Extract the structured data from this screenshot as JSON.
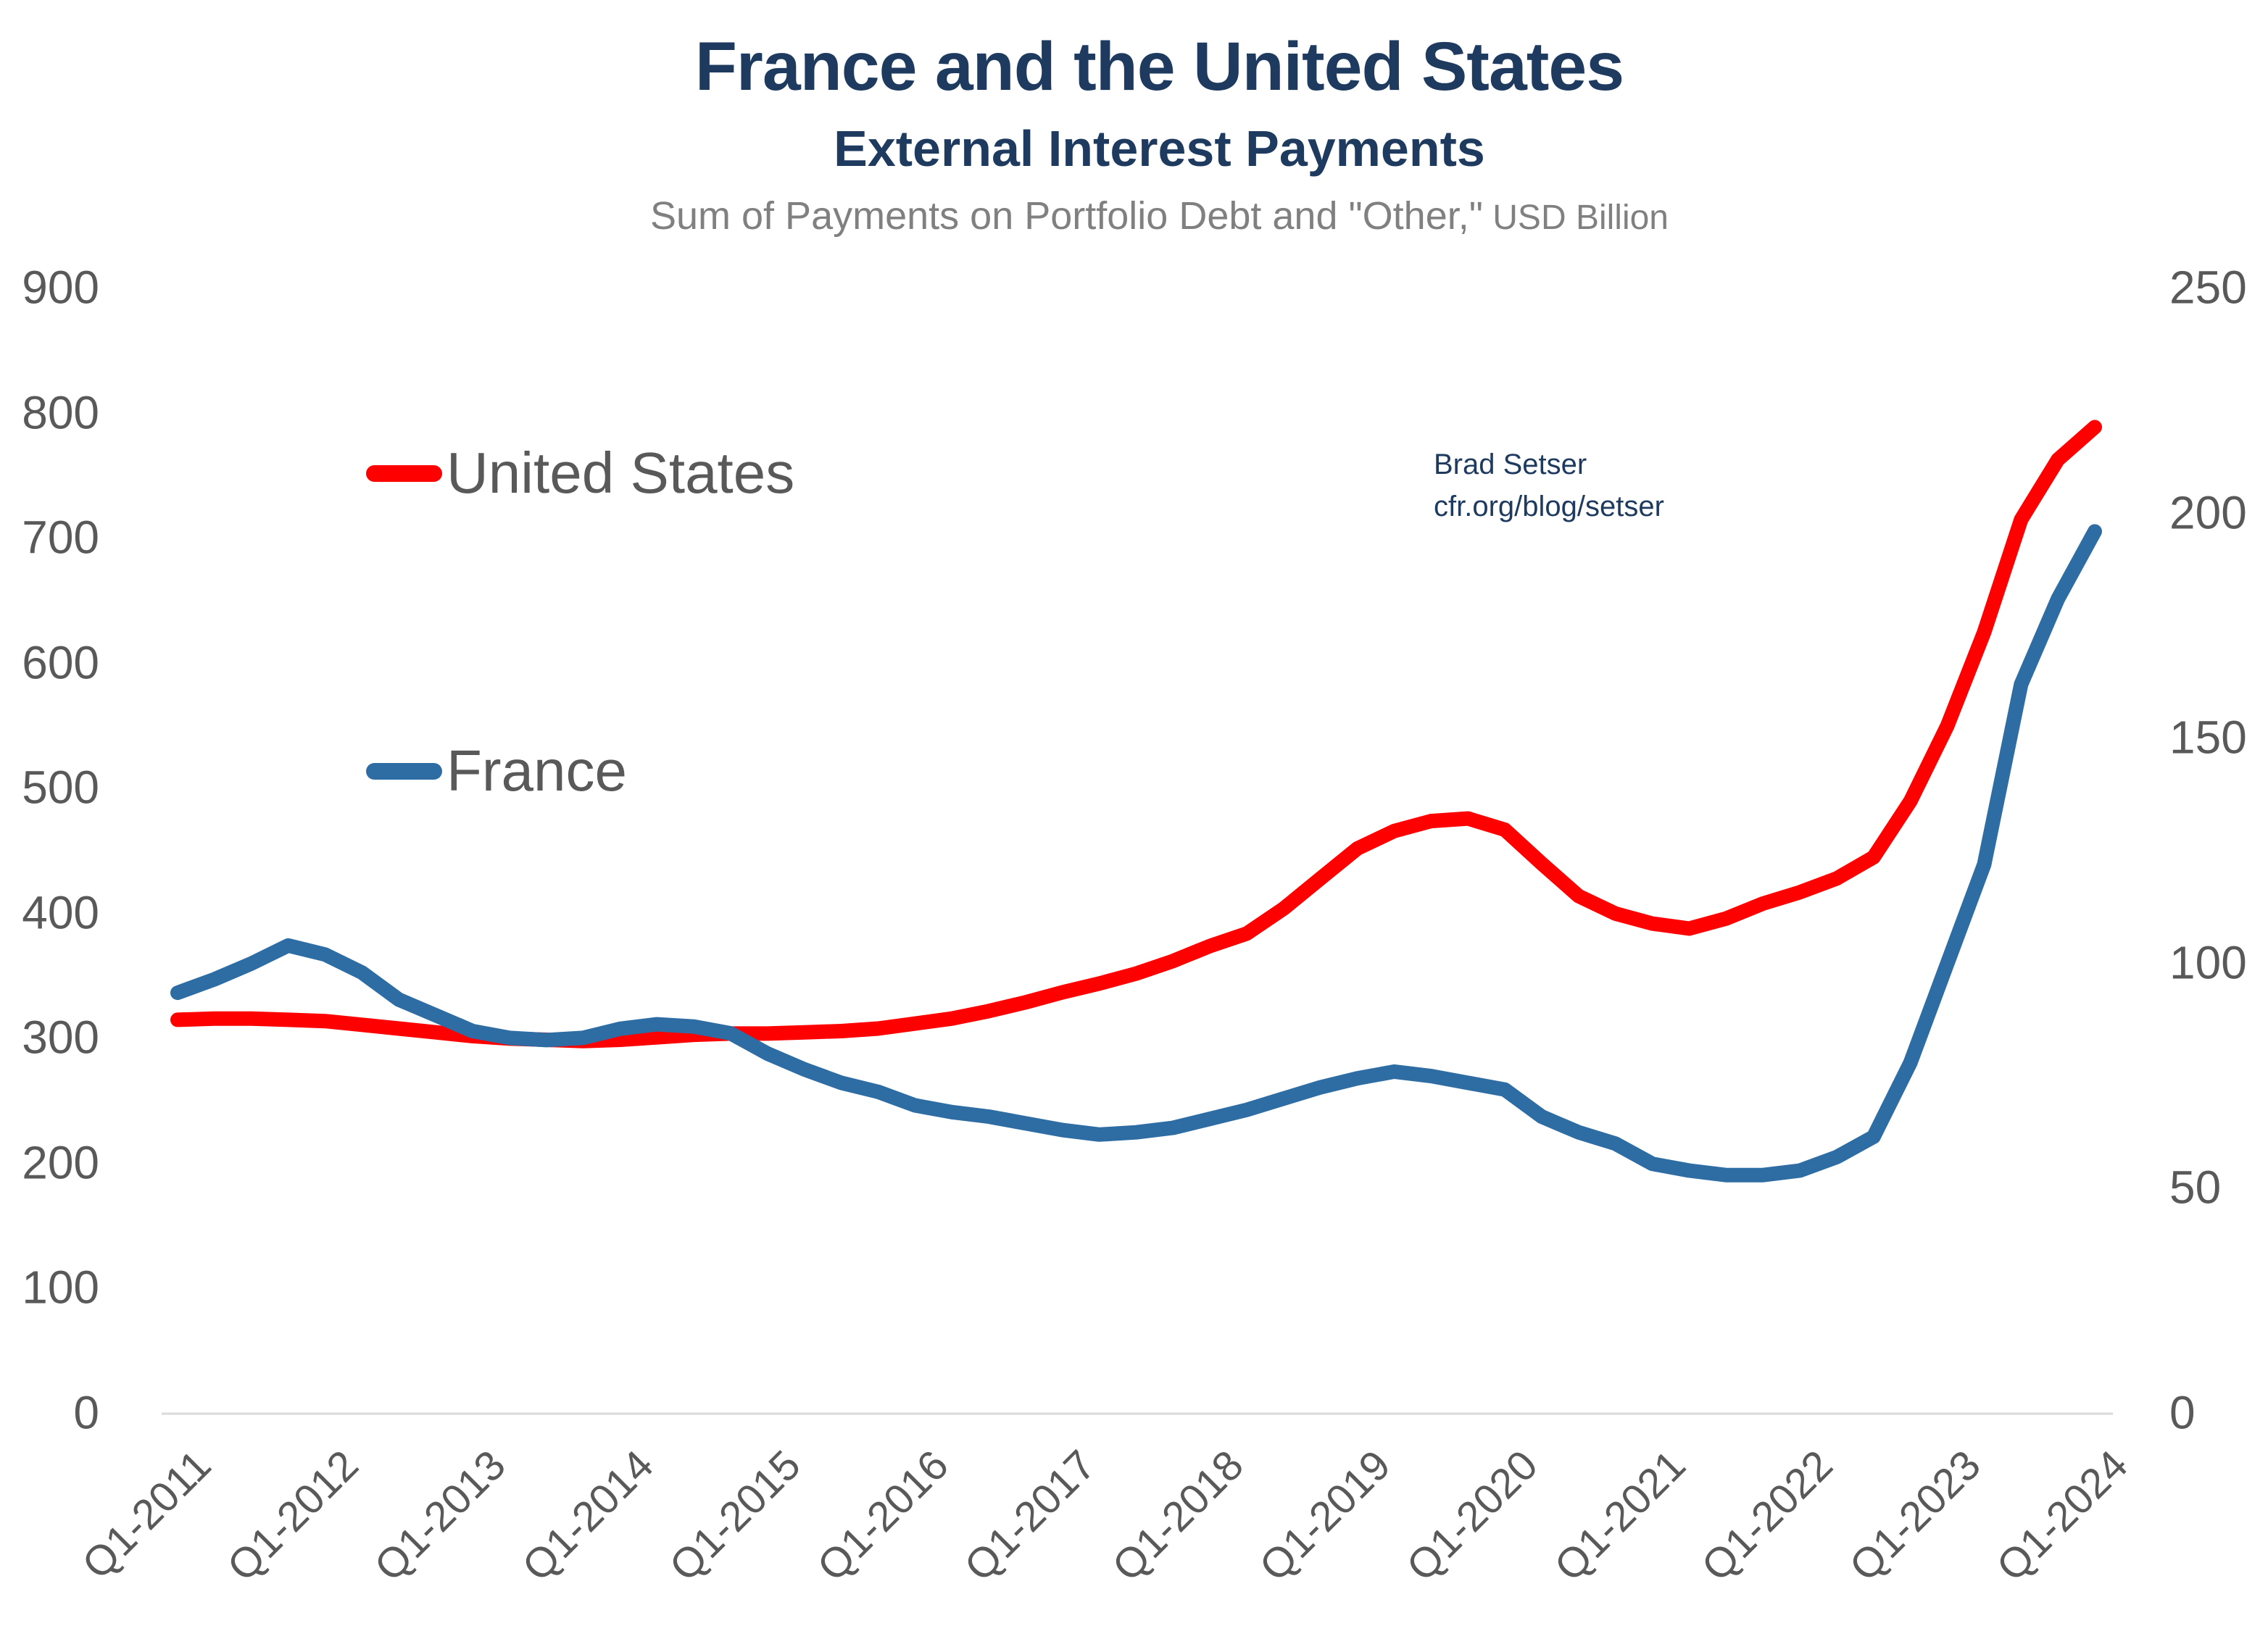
{
  "title": "France and the United States",
  "subtitle": "External Interest Payments",
  "subsubtitle": "Sum of Payments on Portfolio Debt and \"Other,\"",
  "subsubtitle_suffix": " USD Billion",
  "annotation": {
    "line1": "Brad Setser",
    "line2": "cfr.org/blog/setser"
  },
  "colors": {
    "title_navy": "#1E3A5F",
    "text_gray": "#595959",
    "muted_gray": "#808080",
    "axis_line": "#D9D9D9",
    "us_red": "#FE0000",
    "france_blue": "#2E6DA4"
  },
  "legend": [
    {
      "label": "United States",
      "color": "#FE0000"
    },
    {
      "label": "France",
      "color": "#2E6DA4"
    }
  ],
  "chart_data": {
    "type": "line",
    "title": "France and the United States",
    "subtitle": "External Interest Payments",
    "units": "USD Billion",
    "grid": false,
    "x_start": "Q1-2011",
    "x_end": "Q1-2024",
    "frequency": "quarterly",
    "x_tick_labels": [
      "Q1-2011",
      "Q1-2012",
      "Q1-2013",
      "Q1-2014",
      "Q1-2015",
      "Q1-2016",
      "Q1-2017",
      "Q1-2018",
      "Q1-2019",
      "Q1-2020",
      "Q1-2021",
      "Q1-2022",
      "Q1-2023",
      "Q1-2024"
    ],
    "left_axis": {
      "min": 0,
      "max": 900,
      "ticks": [
        0,
        100,
        200,
        300,
        400,
        500,
        600,
        700,
        800,
        900
      ],
      "series": "United States"
    },
    "right_axis": {
      "min": 0,
      "max": 250,
      "ticks": [
        0,
        50,
        100,
        150,
        200,
        250
      ],
      "series": "France"
    },
    "series": [
      {
        "name": "United States",
        "axis": "left",
        "color": "#FE0000",
        "values": [
          315,
          316,
          316,
          315,
          314,
          311,
          308,
          305,
          302,
          300,
          299,
          298,
          299,
          301,
          303,
          304,
          304,
          305,
          306,
          308,
          312,
          316,
          322,
          329,
          337,
          344,
          352,
          362,
          374,
          384,
          404,
          428,
          452,
          466,
          474,
          476,
          467,
          440,
          414,
          400,
          392,
          388,
          396,
          408,
          417,
          428,
          445,
          490,
          550,
          625,
          715,
          763,
          789
        ]
      },
      {
        "name": "France",
        "axis": "right",
        "color": "#2E6DA4",
        "values": [
          93.5,
          96.5,
          100,
          104,
          102,
          98,
          92,
          88.5,
          85,
          83.5,
          83,
          83.5,
          85.5,
          86.5,
          86,
          84.5,
          80,
          76.5,
          73.5,
          71.5,
          68.5,
          67,
          66,
          64.5,
          63,
          62,
          62.5,
          63.5,
          65.5,
          67.5,
          70,
          72.5,
          74.5,
          76,
          75,
          73.5,
          72,
          66,
          62.5,
          60,
          55.5,
          54,
          53,
          53,
          54,
          57,
          61.5,
          78,
          100,
          122,
          162,
          181,
          196
        ]
      }
    ]
  }
}
